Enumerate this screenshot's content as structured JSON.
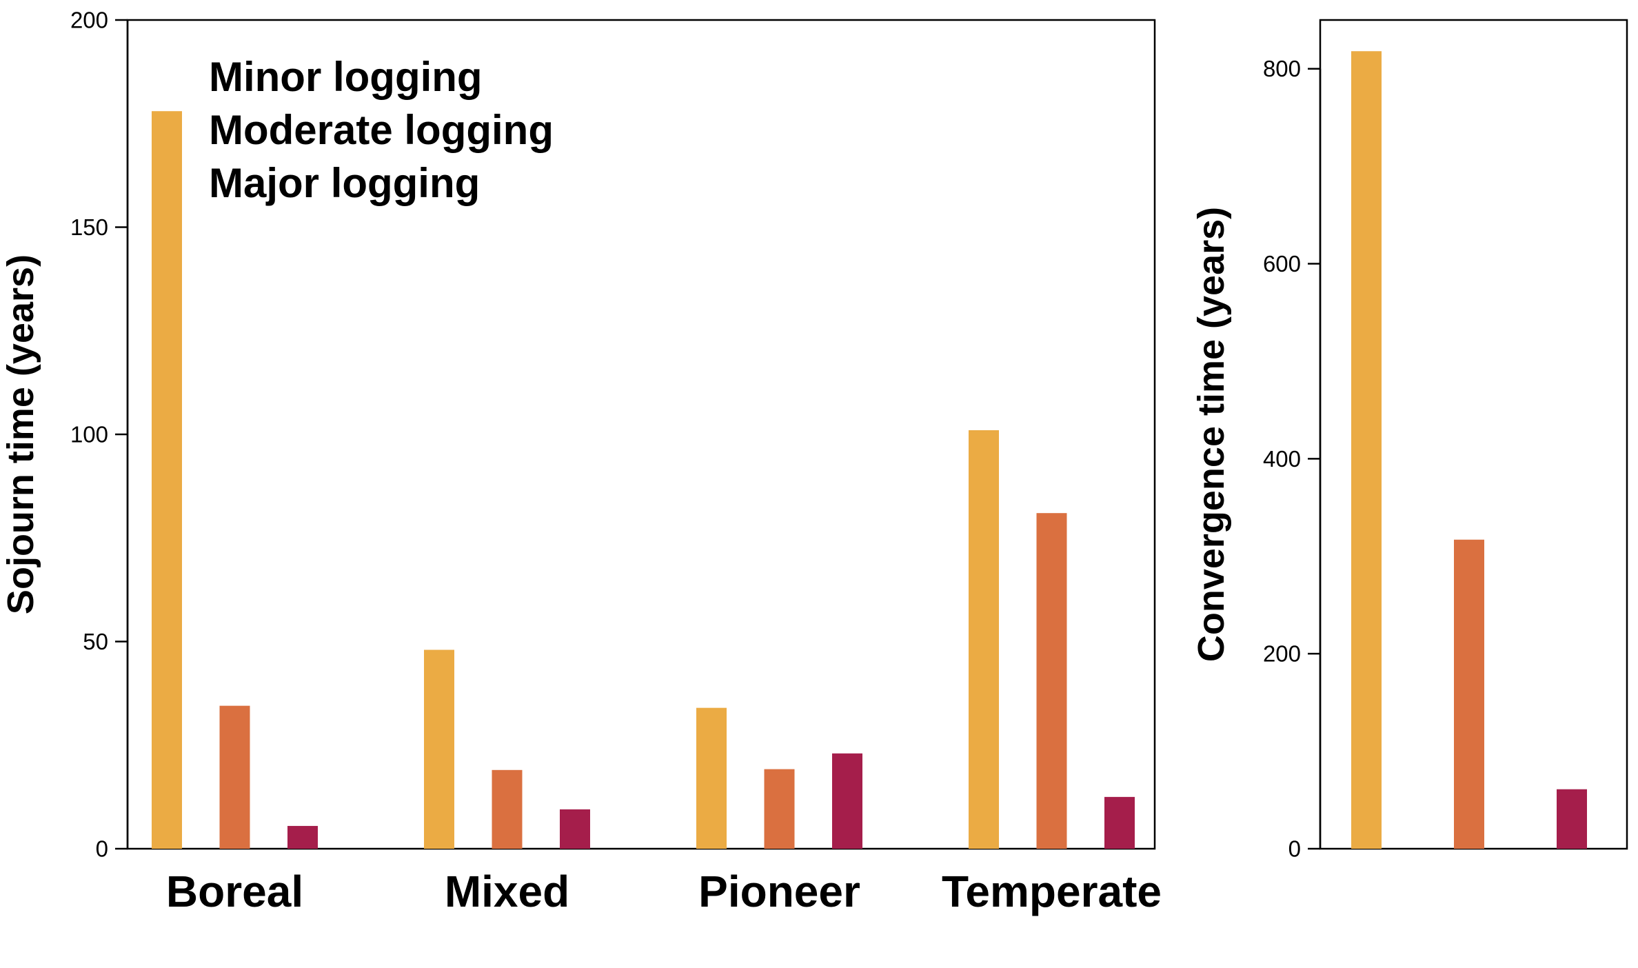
{
  "colors": {
    "minor": "#EBAB44",
    "moderate": "#DA7040",
    "major": "#A51E4B"
  },
  "chart_data": [
    {
      "type": "bar",
      "categories": [
        "Boreal",
        "Mixed",
        "Pioneer",
        "Temperate"
      ],
      "series": [
        {
          "name": "Minor logging",
          "values": [
            178,
            48,
            34,
            101
          ]
        },
        {
          "name": "Moderate logging",
          "values": [
            34.5,
            19,
            19.2,
            81
          ]
        },
        {
          "name": "Major logging",
          "values": [
            5.5,
            9.5,
            23,
            12.5
          ]
        }
      ],
      "ylabel": "Sojourn time (years)",
      "ylim": [
        0,
        200
      ],
      "yticks": [
        "0",
        "50",
        "100",
        "150",
        "200"
      ],
      "legend": "top-left",
      "grid": false
    },
    {
      "type": "bar",
      "series": [
        {
          "name": "Minor logging",
          "values": [
            818
          ]
        },
        {
          "name": "Moderate logging",
          "values": [
            317
          ]
        },
        {
          "name": "Major logging",
          "values": [
            61
          ]
        }
      ],
      "ylabel": "Convergence time (years)",
      "ylim": [
        0,
        850
      ],
      "yticks": [
        "0",
        "200",
        "400",
        "600",
        "800"
      ],
      "grid": false
    }
  ]
}
